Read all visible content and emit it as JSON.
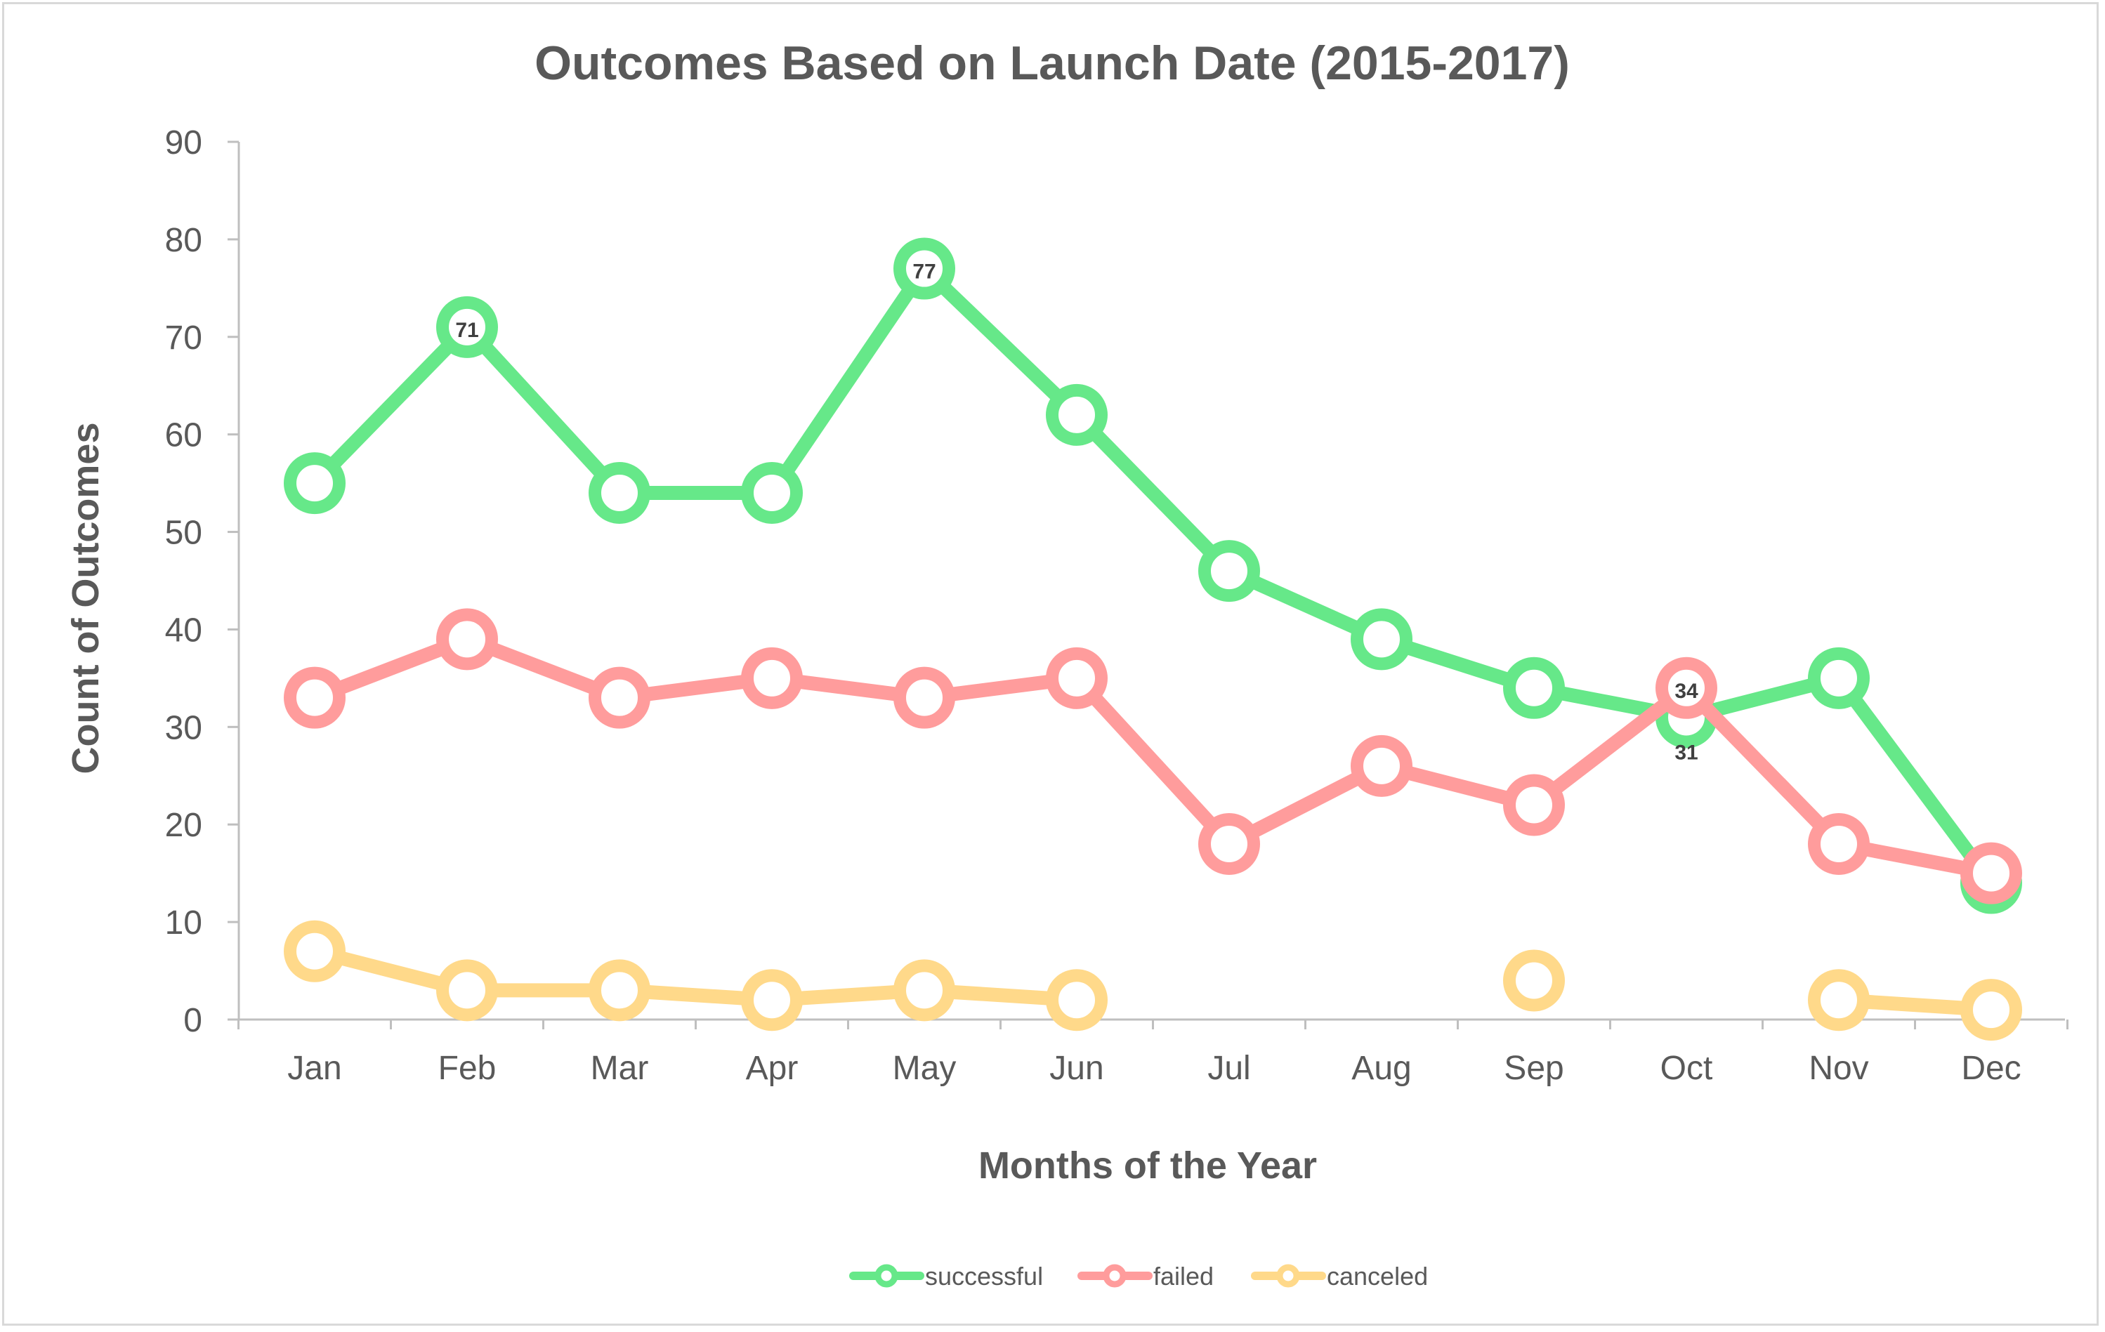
{
  "chart_data": {
    "type": "line",
    "title": "Outcomes Based on Launch Date (2015-2017)",
    "xlabel": "Months of the Year",
    "ylabel": "Count  of Outcomes",
    "categories": [
      "Jan",
      "Feb",
      "Mar",
      "Apr",
      "May",
      "Jun",
      "Jul",
      "Aug",
      "Sep",
      "Oct",
      "Nov",
      "Dec"
    ],
    "ylim": [
      0,
      90
    ],
    "yticks": [
      0,
      10,
      20,
      30,
      40,
      50,
      60,
      70,
      80,
      90
    ],
    "grid": false,
    "legend_position": "bottom",
    "series": [
      {
        "name": "successful",
        "color": "#66e889",
        "values": [
          55,
          71,
          54,
          54,
          77,
          62,
          46,
          39,
          34,
          31,
          35,
          14
        ],
        "labeled_indices": [
          1,
          4,
          9
        ]
      },
      {
        "name": "failed",
        "color": "#ff9c9c",
        "values": [
          33,
          39,
          33,
          35,
          33,
          35,
          18,
          26,
          22,
          34,
          18,
          15
        ],
        "labeled_indices": [
          9
        ]
      },
      {
        "name": "canceled",
        "color": "#ffd98a",
        "values": [
          7,
          3,
          3,
          2,
          3,
          2,
          null,
          null,
          4,
          null,
          2,
          1
        ],
        "labeled_indices": []
      }
    ]
  }
}
